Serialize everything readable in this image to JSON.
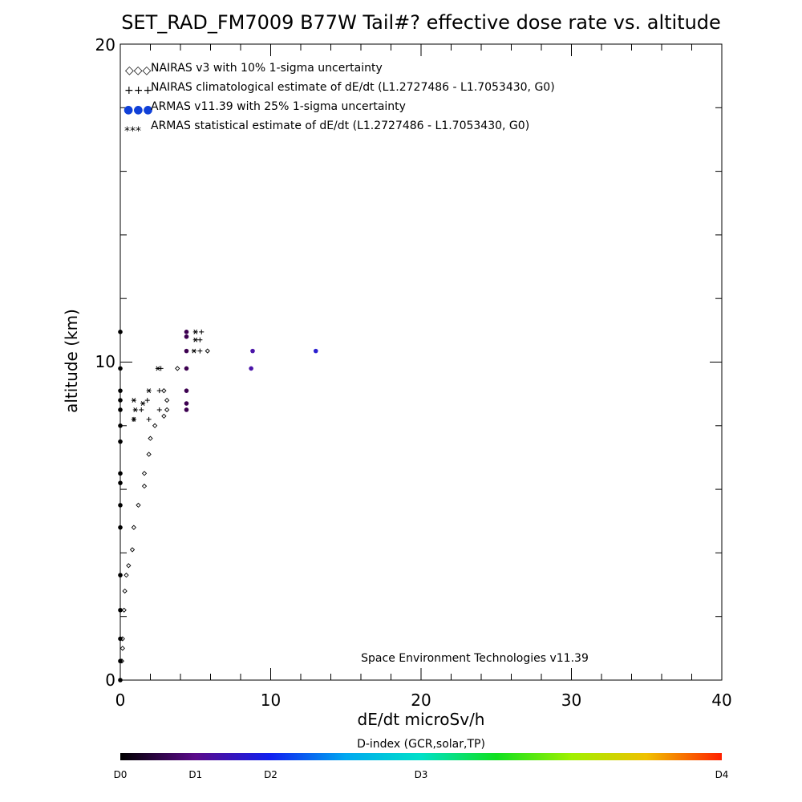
{
  "chart_data": {
    "type": "scatter",
    "title": "SET_RAD_FM7009  B77W Tail#? effective dose rate vs. altitude",
    "xlabel": "dE/dt microSv/h",
    "ylabel": "altitude (km)",
    "xlim": [
      0,
      40
    ],
    "ylim": [
      0,
      20
    ],
    "x_ticks": [
      "0",
      "10",
      "20",
      "30",
      "40"
    ],
    "y_ticks": [
      "0",
      "10",
      "20"
    ],
    "legend": [
      {
        "symbol": "◇◇◇",
        "label": "NAIRAS v3 with 10% 1-sigma uncertainty"
      },
      {
        "symbol": "+++",
        "label": "NAIRAS climatological estimate of dE/dt (L1.2727486 - L1.7053430, G0)"
      },
      {
        "symbol": "●●●",
        "label": "ARMAS v11.39 with 25% 1-sigma uncertainty"
      },
      {
        "symbol": "***",
        "label": "ARMAS statistical estimate of dE/dt (L1.2727486 - L1.7053430, G0)"
      }
    ],
    "legend_position": "top-left",
    "credit": "Space Environment Technologies v11.39",
    "colorbar": {
      "title": "D-index (GCR,solar,TP)",
      "labels": [
        {
          "text": "D0",
          "pos": 0
        },
        {
          "text": "D1",
          "pos": 0.125
        },
        {
          "text": "D2",
          "pos": 0.25
        },
        {
          "text": "D3",
          "pos": 0.5
        },
        {
          "text": "D4",
          "pos": 1
        }
      ]
    },
    "series": [
      {
        "name": "NAIRAS v3 with 10% 1-sigma uncertainty",
        "marker": "diamond",
        "points": [
          [
            0.1,
            0.6
          ],
          [
            0.15,
            1.0
          ],
          [
            0.15,
            1.3
          ],
          [
            0.25,
            2.2
          ],
          [
            0.3,
            2.8
          ],
          [
            0.4,
            3.3
          ],
          [
            0.55,
            3.6
          ],
          [
            0.8,
            4.1
          ],
          [
            0.9,
            4.8
          ],
          [
            1.2,
            5.5
          ],
          [
            1.6,
            6.1
          ],
          [
            1.6,
            6.5
          ],
          [
            1.9,
            7.1
          ],
          [
            2.0,
            7.6
          ],
          [
            2.3,
            8.0
          ],
          [
            2.9,
            8.3
          ],
          [
            3.1,
            8.5
          ],
          [
            3.1,
            8.8
          ],
          [
            2.9,
            9.1
          ],
          [
            3.8,
            9.8
          ],
          [
            5.8,
            10.35
          ]
        ]
      },
      {
        "name": "NAIRAS climatological estimate of dE/dt (L1.2727486 - L1.7053430, G0)",
        "marker": "plus",
        "points": [
          [
            0.9,
            8.2
          ],
          [
            1.9,
            8.2
          ],
          [
            1.4,
            8.5
          ],
          [
            2.6,
            8.5
          ],
          [
            1.8,
            8.8
          ],
          [
            2.6,
            9.1
          ],
          [
            2.7,
            9.8
          ],
          [
            5.3,
            10.35
          ],
          [
            5.3,
            10.7
          ],
          [
            5.4,
            10.95
          ]
        ]
      },
      {
        "name": "ARMAS v11.39 with 25% 1-sigma uncertainty",
        "marker": "dot",
        "points": [
          [
            0,
            0.0
          ],
          [
            0,
            0.6
          ],
          [
            0,
            1.3
          ],
          [
            0,
            2.2
          ],
          [
            0,
            3.3
          ],
          [
            0,
            4.8
          ],
          [
            0,
            5.5
          ],
          [
            0,
            6.2
          ],
          [
            0,
            6.5
          ],
          [
            0,
            7.5
          ],
          [
            0,
            8.0
          ],
          [
            0,
            8.5
          ],
          [
            0,
            8.8
          ],
          [
            0,
            9.1
          ],
          [
            0,
            9.8
          ],
          [
            0,
            10.95
          ],
          [
            4.4,
            8.5
          ],
          [
            4.4,
            8.7
          ],
          [
            4.4,
            9.1
          ],
          [
            4.4,
            9.8
          ],
          [
            4.4,
            10.35
          ],
          [
            4.4,
            10.8
          ],
          [
            4.4,
            10.95
          ],
          [
            8.7,
            9.8
          ],
          [
            8.8,
            10.35
          ],
          [
            13.0,
            10.35
          ]
        ]
      },
      {
        "name": "ARMAS statistical estimate of dE/dt (L1.2727486 - L1.7053430, G0)",
        "marker": "asterisk",
        "points": [
          [
            0.9,
            8.2
          ],
          [
            1.0,
            8.5
          ],
          [
            1.5,
            8.7
          ],
          [
            0.9,
            8.8
          ],
          [
            1.9,
            9.1
          ],
          [
            2.5,
            9.8
          ],
          [
            4.9,
            10.35
          ],
          [
            5.0,
            10.7
          ],
          [
            5.0,
            10.95
          ]
        ]
      }
    ]
  }
}
